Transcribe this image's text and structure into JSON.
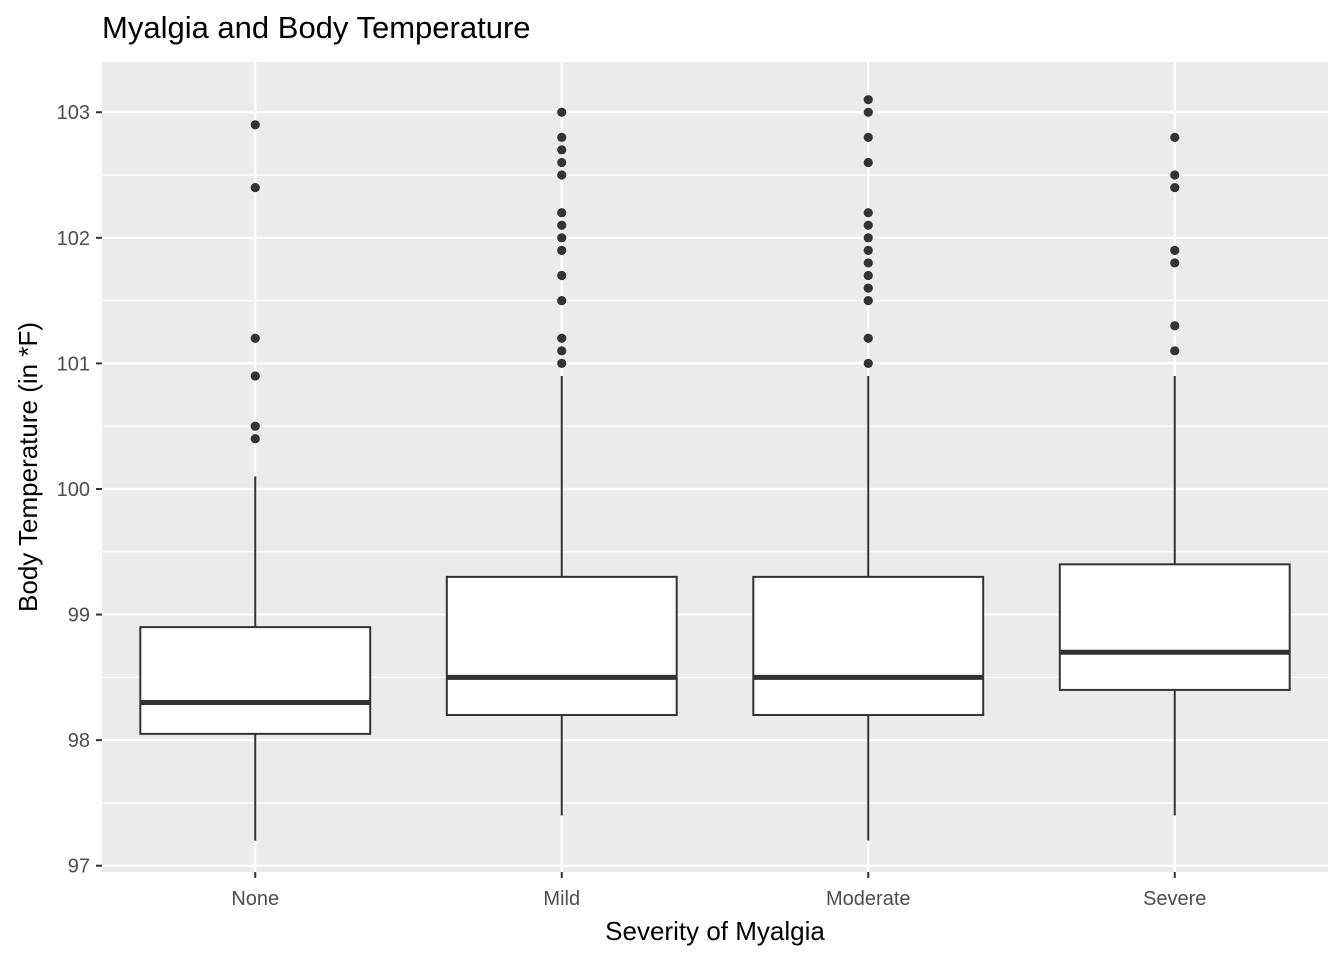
{
  "chart_data": {
    "type": "box",
    "title": "Myalgia and Body Temperature",
    "xlabel": "Severity of Myalgia",
    "ylabel": "Body Temperature (in *F)",
    "ylim": [
      96.95,
      103.4
    ],
    "y_ticks": [
      97,
      98,
      99,
      100,
      101,
      102,
      103
    ],
    "categories": [
      "None",
      "Mild",
      "Moderate",
      "Severe"
    ],
    "grid": true,
    "colors": {
      "panel": "#ebebeb",
      "grid": "#ffffff",
      "box_fill": "#ffffff",
      "ink": "#333333"
    },
    "boxes": [
      {
        "category": "None",
        "q1": 98.05,
        "median": 98.3,
        "q3": 98.9,
        "whisker_low": 97.2,
        "whisker_high": 100.1,
        "outliers": [
          100.4,
          100.5,
          100.9,
          101.2,
          102.4,
          102.9
        ]
      },
      {
        "category": "Mild",
        "q1": 98.2,
        "median": 98.5,
        "q3": 99.3,
        "whisker_low": 97.4,
        "whisker_high": 100.9,
        "outliers": [
          101.0,
          101.1,
          101.2,
          101.5,
          101.7,
          101.9,
          102.0,
          102.1,
          102.2,
          102.5,
          102.6,
          102.7,
          102.8,
          103.0
        ]
      },
      {
        "category": "Moderate",
        "q1": 98.2,
        "median": 98.5,
        "q3": 99.3,
        "whisker_low": 97.2,
        "whisker_high": 100.9,
        "outliers": [
          101.0,
          101.2,
          101.5,
          101.6,
          101.7,
          101.8,
          101.9,
          102.0,
          102.1,
          102.2,
          102.6,
          102.8,
          103.0,
          103.1
        ]
      },
      {
        "category": "Severe",
        "q1": 98.4,
        "median": 98.7,
        "q3": 99.4,
        "whisker_low": 97.4,
        "whisker_high": 100.9,
        "outliers": [
          101.1,
          101.3,
          101.8,
          101.9,
          102.4,
          102.5,
          102.8
        ]
      }
    ]
  }
}
